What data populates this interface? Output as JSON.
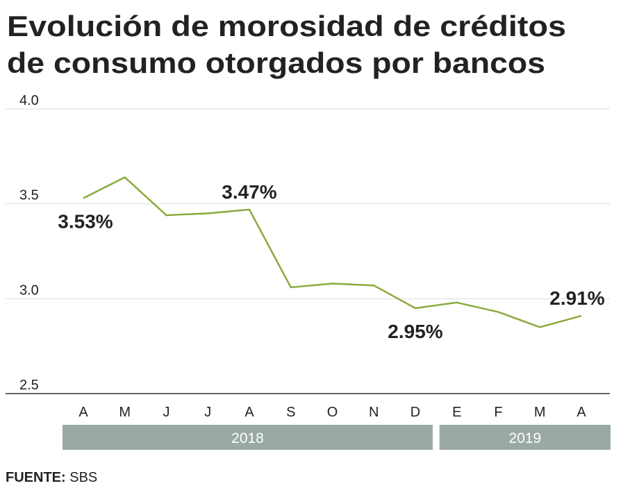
{
  "chart_data": {
    "type": "line",
    "title": [
      "Evolución de morosidad de créditos",
      "de consumo otorgados por bancos"
    ],
    "categories": [
      "A",
      "M",
      "J",
      "J",
      "A",
      "S",
      "O",
      "N",
      "D",
      "E",
      "F",
      "M",
      "A"
    ],
    "series": [
      {
        "name": null,
        "color": "#8aaa3c",
        "values": [
          3.53,
          3.64,
          3.44,
          3.45,
          3.47,
          3.06,
          3.08,
          3.07,
          2.95,
          2.98,
          2.93,
          2.85,
          2.91
        ],
        "value_labels": [
          "3.53%",
          null,
          null,
          null,
          "3.47%",
          null,
          null,
          null,
          "2.95%",
          null,
          null,
          null,
          "2.91%"
        ]
      }
    ],
    "ylim": [
      2.5,
      4.0
    ],
    "yticks": [
      {
        "value": 4.0,
        "label": "4.0"
      },
      3.5,
      {
        "value": 3.0,
        "label": "3.0"
      },
      2.5
    ],
    "grid": true,
    "groups": [
      {
        "label": "2018",
        "from": 0,
        "to": 8
      },
      {
        "label": "2019",
        "from": 9,
        "to": 12
      }
    ],
    "source": {
      "label": "FUENTE:",
      "text": "SBS"
    }
  }
}
